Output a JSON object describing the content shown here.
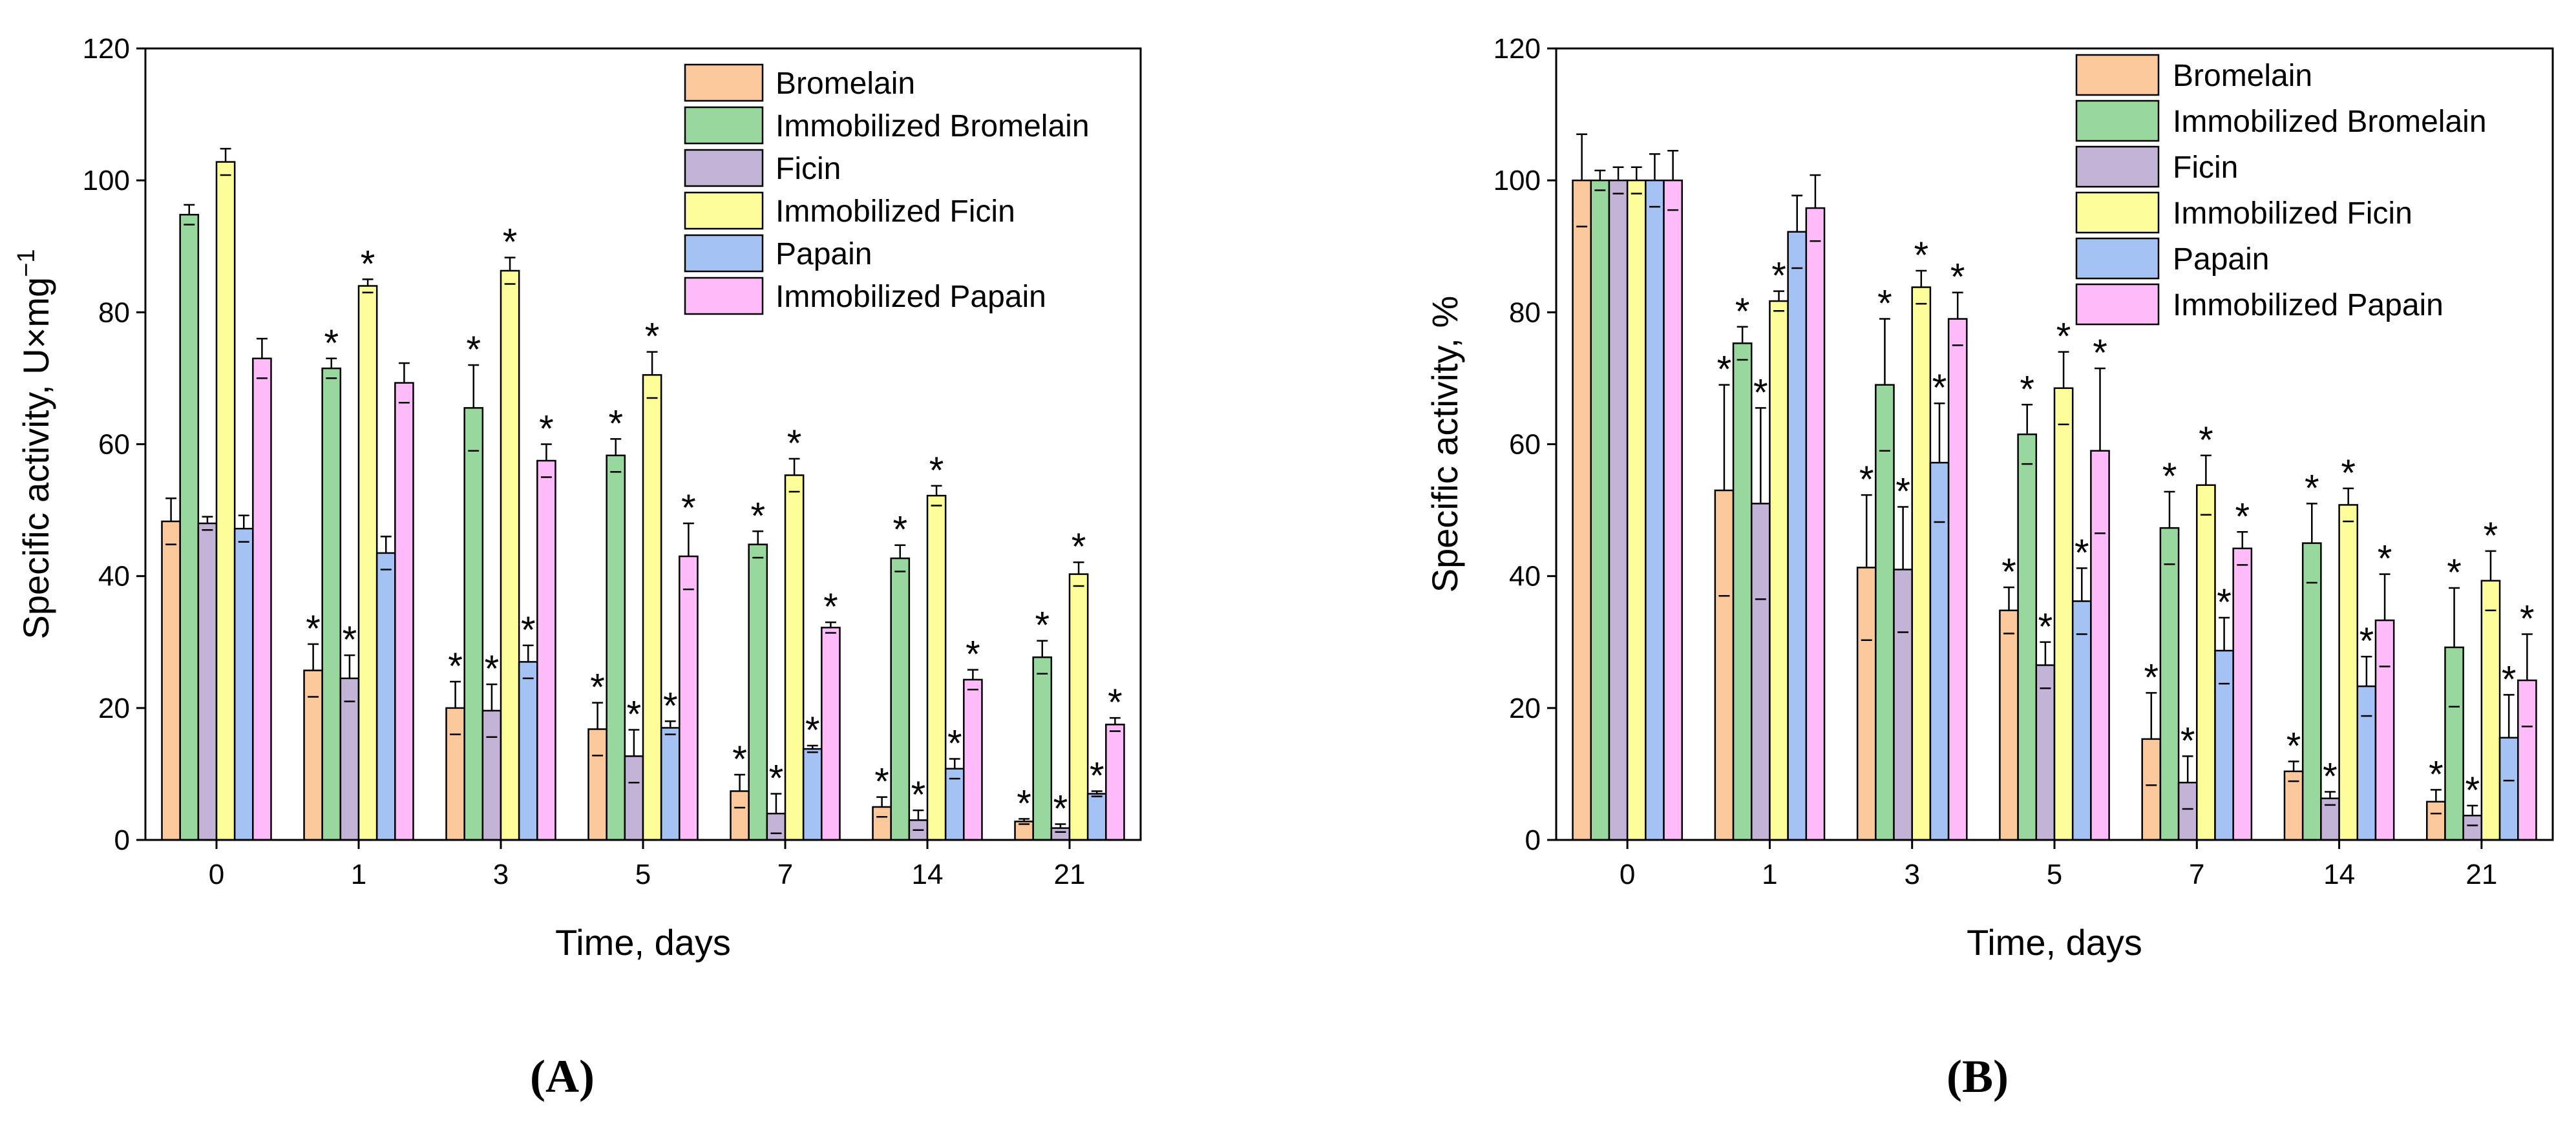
{
  "chart_data": [
    {
      "panel": "(A)",
      "type": "bar",
      "xlabel": "Time, days",
      "ylabel_main": "Specific activity, U×mg",
      "ylabel_sup": "−1",
      "ylim": [
        0,
        120
      ],
      "yticks": [
        0,
        20,
        40,
        60,
        80,
        100,
        120
      ],
      "categories": [
        "0",
        "1",
        "3",
        "5",
        "7",
        "14",
        "21"
      ],
      "series": [
        {
          "name": "Bromelain",
          "color": "#fbc89b",
          "values": [
            48.3,
            25.7,
            20.0,
            16.8,
            7.4,
            5.0,
            2.8
          ],
          "errors": [
            3.5,
            4.0,
            4.0,
            4.0,
            2.5,
            1.5,
            0.4
          ],
          "sig": [
            false,
            true,
            true,
            true,
            true,
            true,
            true
          ]
        },
        {
          "name": "Immobilized Bromelain",
          "color": "#98d89e",
          "values": [
            94.8,
            71.5,
            65.5,
            58.3,
            44.8,
            42.7,
            27.7
          ],
          "errors": [
            1.5,
            1.5,
            6.5,
            2.5,
            2.0,
            2.0,
            2.5
          ],
          "sig": [
            false,
            true,
            true,
            true,
            true,
            true,
            true
          ]
        },
        {
          "name": "Ficin",
          "color": "#c3b3d6",
          "values": [
            48.0,
            24.5,
            19.6,
            12.7,
            4.0,
            3.0,
            1.8
          ],
          "errors": [
            1.0,
            3.5,
            4.0,
            4.0,
            3.0,
            1.5,
            0.6
          ],
          "sig": [
            false,
            true,
            true,
            true,
            true,
            true,
            true
          ]
        },
        {
          "name": "Immobilized Ficin",
          "color": "#fdfd99",
          "values": [
            102.8,
            84.0,
            86.3,
            70.5,
            55.3,
            52.2,
            40.3
          ],
          "errors": [
            2.0,
            1.0,
            2.0,
            3.5,
            2.5,
            1.5,
            1.8
          ],
          "sig": [
            false,
            true,
            true,
            true,
            true,
            true,
            true
          ]
        },
        {
          "name": "Papain",
          "color": "#a4c2f4",
          "values": [
            47.2,
            43.5,
            27.0,
            17.0,
            13.8,
            10.8,
            7.0
          ],
          "errors": [
            2.0,
            2.5,
            2.5,
            1.0,
            0.5,
            1.5,
            0.4
          ],
          "sig": [
            false,
            false,
            true,
            true,
            true,
            true,
            true
          ]
        },
        {
          "name": "Immobilized Papain",
          "color": "#fdbbfa",
          "values": [
            73.0,
            69.3,
            57.5,
            43.0,
            32.2,
            24.3,
            17.5
          ],
          "errors": [
            3.0,
            3.0,
            2.5,
            5.0,
            0.8,
            1.5,
            1.0
          ],
          "sig": [
            false,
            false,
            true,
            true,
            true,
            true,
            true
          ]
        }
      ]
    },
    {
      "panel": "(B)",
      "type": "bar",
      "xlabel": "Time, days",
      "ylabel_main": "Specific activity, %",
      "ylabel_sup": "",
      "ylim": [
        0,
        120
      ],
      "yticks": [
        0,
        20,
        40,
        60,
        80,
        100,
        120
      ],
      "categories": [
        "0",
        "1",
        "3",
        "5",
        "7",
        "14",
        "21"
      ],
      "series": [
        {
          "name": "Bromelain",
          "color": "#fbc89b",
          "values": [
            100.0,
            53.0,
            41.3,
            34.8,
            15.3,
            10.4,
            5.8
          ],
          "errors": [
            7.0,
            16.0,
            11.0,
            3.5,
            7.0,
            1.5,
            1.8
          ],
          "sig": [
            false,
            true,
            true,
            true,
            true,
            true,
            true
          ]
        },
        {
          "name": "Immobilized Bromelain",
          "color": "#98d89e",
          "values": [
            100.0,
            75.3,
            69.0,
            61.5,
            47.3,
            45.0,
            29.2
          ],
          "errors": [
            1.5,
            2.5,
            10.0,
            4.5,
            5.5,
            6.0,
            9.0
          ],
          "sig": [
            false,
            true,
            true,
            true,
            true,
            true,
            true
          ]
        },
        {
          "name": "Ficin",
          "color": "#c3b3d6",
          "values": [
            100.0,
            51.0,
            41.0,
            26.5,
            8.7,
            6.3,
            3.7
          ],
          "errors": [
            2.0,
            14.5,
            9.5,
            3.5,
            4.0,
            1.0,
            1.5
          ],
          "sig": [
            false,
            true,
            true,
            true,
            true,
            true,
            true
          ]
        },
        {
          "name": "Immobilized Ficin",
          "color": "#fdfd99",
          "values": [
            100.0,
            81.7,
            83.8,
            68.5,
            53.8,
            50.8,
            39.3
          ],
          "errors": [
            2.0,
            1.5,
            2.5,
            5.5,
            4.5,
            2.5,
            4.5
          ],
          "sig": [
            false,
            true,
            true,
            true,
            true,
            true,
            true
          ]
        },
        {
          "name": "Papain",
          "color": "#a4c2f4",
          "values": [
            100.0,
            92.2,
            57.2,
            36.2,
            28.7,
            23.3,
            15.5
          ],
          "errors": [
            4.0,
            5.5,
            9.0,
            5.0,
            5.0,
            4.5,
            6.5
          ],
          "sig": [
            false,
            false,
            true,
            true,
            true,
            true,
            true
          ]
        },
        {
          "name": "Immobilized Papain",
          "color": "#fdbbfa",
          "values": [
            100.0,
            95.8,
            79.0,
            59.0,
            44.2,
            33.3,
            24.2
          ],
          "errors": [
            4.5,
            5.0,
            4.0,
            12.5,
            2.5,
            7.0,
            7.0
          ],
          "sig": [
            false,
            false,
            true,
            true,
            true,
            true,
            true
          ]
        }
      ]
    }
  ]
}
